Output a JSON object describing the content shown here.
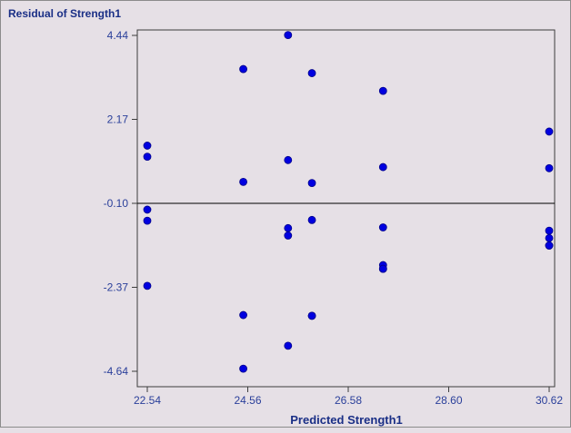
{
  "chart_data": {
    "type": "scatter",
    "ylabel": "Residual of Strength1",
    "xlabel": "Predicted Strength1",
    "xlim": [
      22.54,
      30.62
    ],
    "ylim": [
      -4.64,
      4.44
    ],
    "xticks": [
      "22.54",
      "24.56",
      "26.58",
      "28.60",
      "30.62"
    ],
    "yticks": [
      "4.44",
      "2.17",
      "-0.10",
      "-2.37",
      "-4.64"
    ],
    "reference_line_y": -0.1,
    "grid": false,
    "colors": {
      "background": "#E6E0E6",
      "point": "#0000E0",
      "axis": "#3C3C3C",
      "text": "#1A2F86"
    },
    "series": [
      {
        "x": [
          22.54,
          22.54,
          22.54,
          22.54,
          22.54,
          24.47,
          24.47,
          24.47,
          24.47,
          25.37,
          25.37,
          25.37,
          25.37,
          25.37,
          25.85,
          25.85,
          25.85,
          25.85,
          25.85,
          27.28,
          27.28,
          27.28,
          27.28,
          27.28,
          27.28,
          30.62,
          30.62,
          30.62,
          30.62,
          30.62,
          30.62
        ],
        "y": [
          1.46,
          1.16,
          -0.27,
          -0.57,
          -2.33,
          3.53,
          0.48,
          -3.12,
          -4.57,
          4.45,
          1.07,
          -0.77,
          -0.97,
          -3.95,
          3.42,
          0.45,
          -0.55,
          -3.14,
          -3.14,
          2.94,
          0.88,
          -0.75,
          -1.77,
          -1.87,
          -1.87,
          1.84,
          0.85,
          -0.84,
          -1.04,
          -1.24,
          -1.24
        ]
      }
    ]
  }
}
